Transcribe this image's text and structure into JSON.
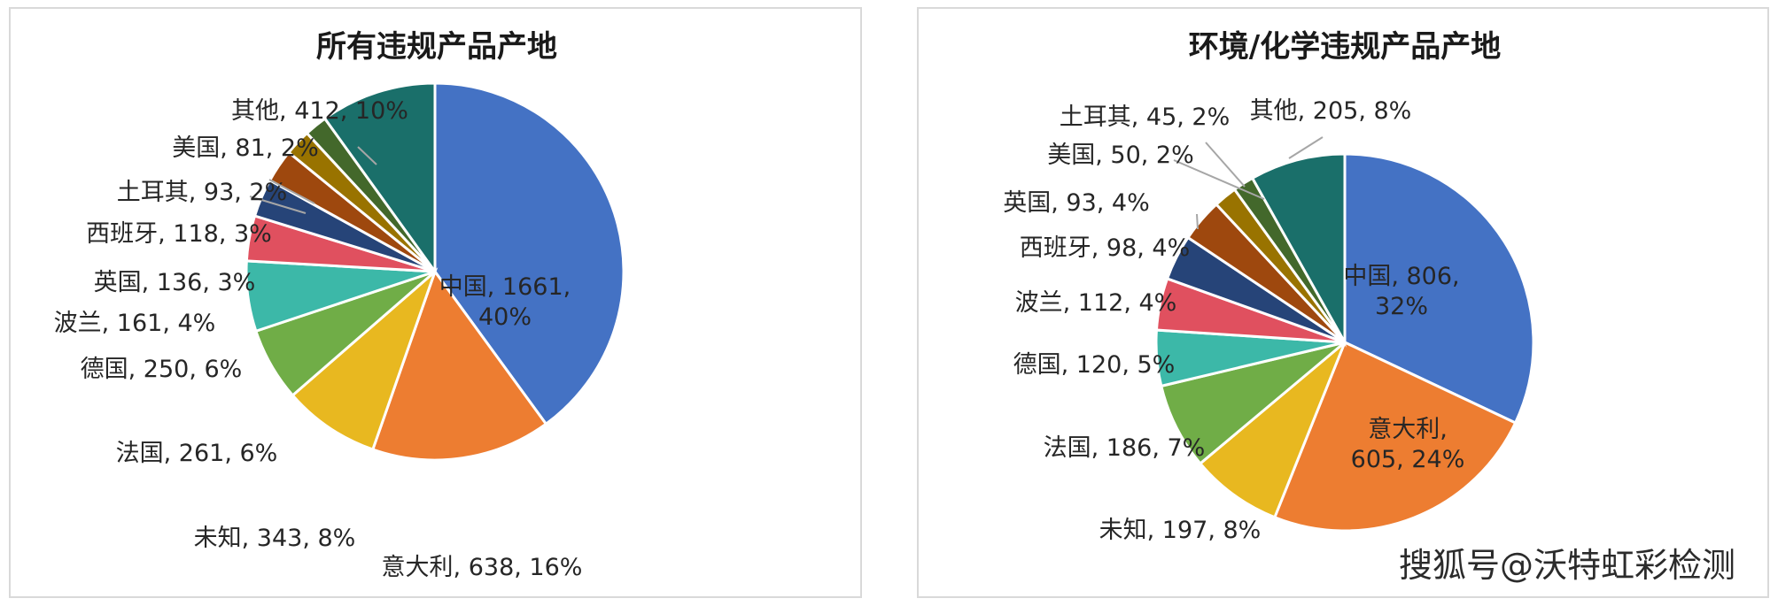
{
  "chart_data": [
    {
      "type": "pie",
      "title": "所有违规产品产地",
      "slices": [
        {
          "name": "中国",
          "value": 1661,
          "percent": "40%",
          "label": [
            "中国, 1661,",
            "40%"
          ],
          "color": "#4472c4"
        },
        {
          "name": "意大利",
          "value": 638,
          "percent": "16%",
          "label": [
            "意大利, 638, 16%"
          ],
          "color": "#ed7d31"
        },
        {
          "name": "未知",
          "value": 343,
          "percent": "8%",
          "label": [
            "未知, 343, 8%"
          ],
          "color": "#e8b820"
        },
        {
          "name": "法国",
          "value": 261,
          "percent": "6%",
          "label": [
            "法国, 261, 6%"
          ],
          "color": "#70ad47"
        },
        {
          "name": "德国",
          "value": 250,
          "percent": "6%",
          "label": [
            "德国, 250, 6%"
          ],
          "color": "#3cb8a8"
        },
        {
          "name": "波兰",
          "value": 161,
          "percent": "4%",
          "label": [
            "波兰, 161, 4%"
          ],
          "color": "#e0505f"
        },
        {
          "name": "英国",
          "value": 136,
          "percent": "3%",
          "label": [
            "英国, 136, 3%"
          ],
          "color": "#264478"
        },
        {
          "name": "西班牙",
          "value": 118,
          "percent": "3%",
          "label": [
            "西班牙, 118, 3%"
          ],
          "color": "#9e480e"
        },
        {
          "name": "土耳其",
          "value": 93,
          "percent": "2%",
          "label": [
            "土耳其, 93, 2%"
          ],
          "color": "#997300"
        },
        {
          "name": "美国",
          "value": 81,
          "percent": "2%",
          "label": [
            "美国, 81, 2%"
          ],
          "color": "#43682b"
        },
        {
          "name": "其他",
          "value": 412,
          "percent": "10%",
          "label": [
            "其他, 412, 10%"
          ],
          "color": "#1a6f6a"
        }
      ]
    },
    {
      "type": "pie",
      "title": "环境/化学违规产品产地",
      "slices": [
        {
          "name": "中国",
          "value": 806,
          "percent": "32%",
          "label": [
            "中国, 806,",
            "32%"
          ],
          "color": "#4472c4"
        },
        {
          "name": "意大利",
          "value": 605,
          "percent": "24%",
          "label": [
            "意大利,",
            "605, 24%"
          ],
          "color": "#ed7d31"
        },
        {
          "name": "未知",
          "value": 197,
          "percent": "8%",
          "label": [
            "未知, 197, 8%"
          ],
          "color": "#e8b820"
        },
        {
          "name": "法国",
          "value": 186,
          "percent": "7%",
          "label": [
            "法国, 186, 7%"
          ],
          "color": "#70ad47"
        },
        {
          "name": "德国",
          "value": 120,
          "percent": "5%",
          "label": [
            "德国, 120, 5%"
          ],
          "color": "#3cb8a8"
        },
        {
          "name": "波兰",
          "value": 112,
          "percent": "4%",
          "label": [
            "波兰, 112, 4%"
          ],
          "color": "#e0505f"
        },
        {
          "name": "西班牙",
          "value": 98,
          "percent": "4%",
          "label": [
            "西班牙, 98, 4%"
          ],
          "color": "#264478"
        },
        {
          "name": "英国",
          "value": 93,
          "percent": "4%",
          "label": [
            "英国, 93, 4%"
          ],
          "color": "#9e480e"
        },
        {
          "name": "美国",
          "value": 50,
          "percent": "2%",
          "label": [
            "美国, 50, 2%"
          ],
          "color": "#997300"
        },
        {
          "name": "土耳其",
          "value": 45,
          "percent": "2%",
          "label": [
            "土耳其, 45, 2%"
          ],
          "color": "#43682b"
        },
        {
          "name": "其他",
          "value": 205,
          "percent": "8%",
          "label": [
            "其他, 205, 8%"
          ],
          "color": "#1a6f6a"
        }
      ]
    }
  ],
  "watermark": "搜狐号@沃特虹彩检测"
}
